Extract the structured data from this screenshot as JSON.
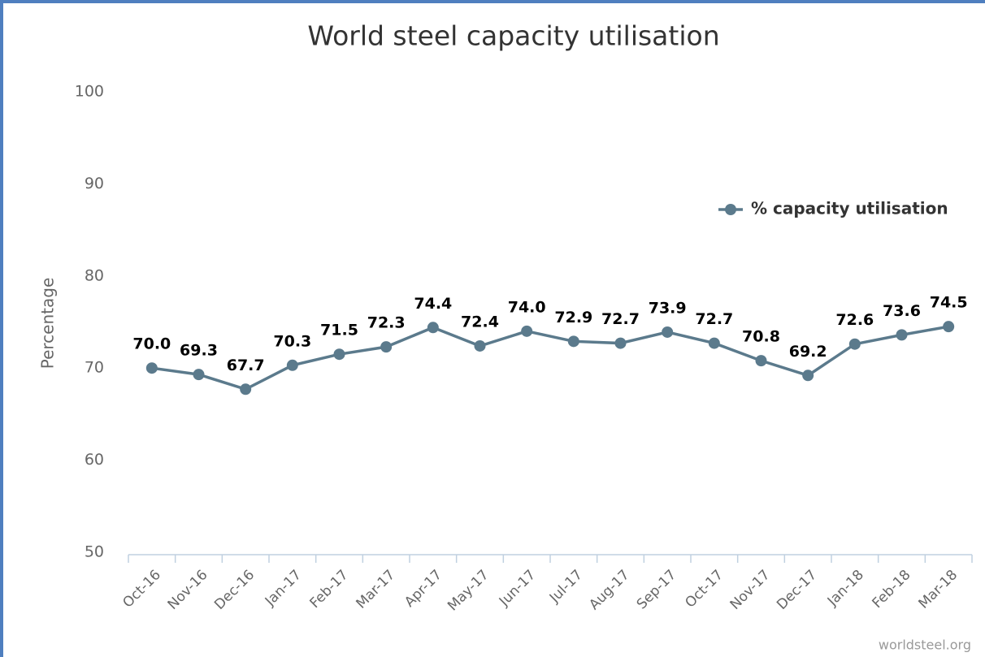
{
  "chart_data": {
    "type": "line",
    "title": "World steel capacity utilisation",
    "y_label": "Percentage",
    "categories": [
      "Oct-16",
      "Nov-16",
      "Dec-16",
      "Jan-17",
      "Feb-17",
      "Mar-17",
      "Apr-17",
      "May-17",
      "Jun-17",
      "Jul-17",
      "Aug-17",
      "Sep-17",
      "Oct-17",
      "Nov-17",
      "Dec-17",
      "Jan-18",
      "Feb-18",
      "Mar-18"
    ],
    "series": [
      {
        "name": "% capacity utilisation",
        "color": "#5b7a8c",
        "values": [
          70.0,
          69.3,
          67.7,
          70.3,
          71.5,
          72.3,
          74.4,
          72.4,
          74.0,
          72.9,
          72.7,
          73.9,
          72.7,
          70.8,
          69.2,
          72.6,
          73.6,
          74.5
        ],
        "value_labels": [
          "70.0",
          "69.3",
          "67.7",
          "70.3",
          "71.5",
          "72.3",
          "74.4",
          "72.4",
          "74.0",
          "72.9",
          "72.7",
          "73.9",
          "72.7",
          "70.8",
          "69.2",
          "72.6",
          "73.6",
          "74.5"
        ]
      }
    ],
    "ylim": [
      50,
      100
    ],
    "yticks": [
      50,
      60,
      70,
      80,
      90,
      100
    ],
    "grid": false,
    "legend": "right",
    "credits": "worldsteel.org"
  }
}
